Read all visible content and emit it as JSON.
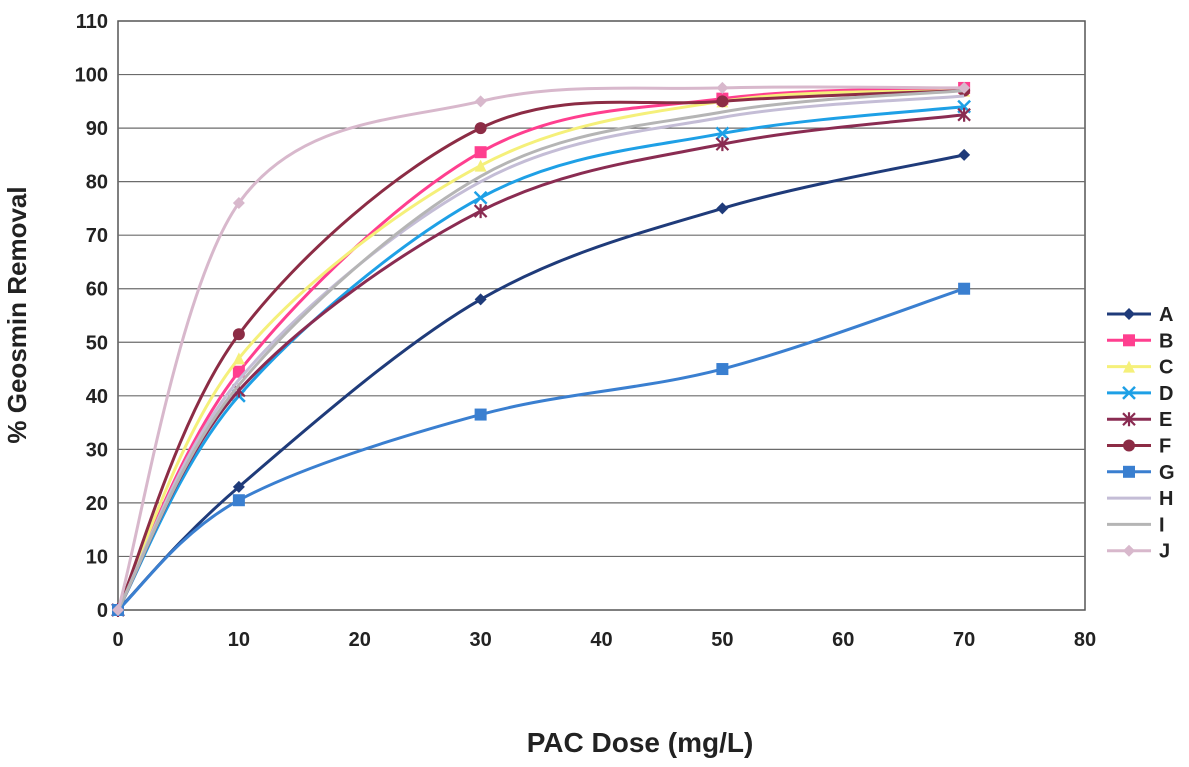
{
  "chart_data": {
    "type": "line",
    "title": "",
    "xlabel": "PAC Dose (mg/L)",
    "ylabel": "% Geosmin Removal",
    "xlim": [
      0,
      80
    ],
    "ylim": [
      0,
      110
    ],
    "xticks": [
      0,
      10,
      20,
      30,
      40,
      50,
      60,
      70,
      80
    ],
    "yticks": [
      0,
      10,
      20,
      30,
      40,
      50,
      60,
      70,
      80,
      90,
      100,
      110
    ],
    "grid": "horizontal",
    "legend_position": "right",
    "x": [
      0,
      10,
      30,
      50,
      70
    ],
    "series": [
      {
        "name": "A",
        "values": [
          0,
          23,
          58,
          75,
          85
        ],
        "color": "#1f3b7a",
        "marker": "diamond"
      },
      {
        "name": "B",
        "values": [
          0,
          44.5,
          85.5,
          95.5,
          97.5
        ],
        "color": "#ff3f8f",
        "marker": "square"
      },
      {
        "name": "C",
        "values": [
          0,
          47,
          83,
          95,
          97
        ],
        "color": "#f5f07a",
        "marker": "triangle"
      },
      {
        "name": "D",
        "values": [
          0,
          40,
          77,
          89,
          94
        ],
        "color": "#1ea0e6",
        "marker": "x"
      },
      {
        "name": "E",
        "values": [
          0,
          41,
          74.5,
          87,
          92.5
        ],
        "color": "#8a2c52",
        "marker": "star"
      },
      {
        "name": "F",
        "values": [
          0,
          51.5,
          90,
          95,
          97
        ],
        "color": "#8c2c45",
        "marker": "circle"
      },
      {
        "name": "G",
        "values": [
          0,
          20.5,
          36.5,
          45,
          60
        ],
        "color": "#3a7fd0",
        "marker": "square"
      },
      {
        "name": "H",
        "values": [
          0,
          43,
          80,
          92,
          96
        ],
        "color": "#c4bdd6",
        "marker": "none"
      },
      {
        "name": "I",
        "values": [
          0,
          42,
          81,
          93,
          97
        ],
        "color": "#b5b5b5",
        "marker": "none"
      },
      {
        "name": "J",
        "values": [
          0,
          76,
          95,
          97.5,
          97.5
        ],
        "color": "#d8b8cc",
        "marker": "diamond"
      }
    ]
  }
}
